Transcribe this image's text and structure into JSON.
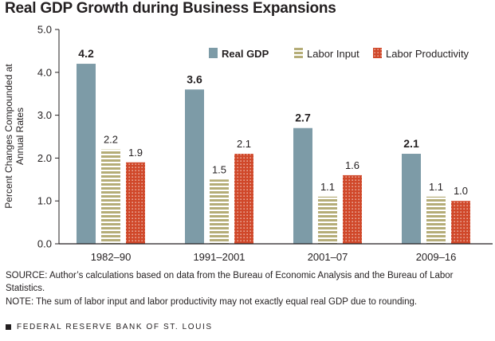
{
  "title": "Real GDP Growth during Business Expansions",
  "chart_data": {
    "type": "bar",
    "categories": [
      "1982–90",
      "1991–2001",
      "2001–07",
      "2009–16"
    ],
    "series": [
      {
        "name": "Real GDP",
        "values": [
          4.2,
          3.6,
          2.7,
          2.1
        ],
        "color": "#7d9ba7",
        "pattern": "solid",
        "labels": [
          "4.2",
          "3.6",
          "2.7",
          "2.1"
        ],
        "bold_labels": true
      },
      {
        "name": "Labor Input",
        "values": [
          2.2,
          1.5,
          1.1,
          1.1
        ],
        "color": "#b5ad78",
        "pattern": "horizontal-stripes",
        "labels": [
          "2.2",
          "1.5",
          "1.1",
          "1.1"
        ],
        "bold_labels": false
      },
      {
        "name": "Labor Productivity",
        "values": [
          1.9,
          2.1,
          1.6,
          1.0
        ],
        "color": "#d0482a",
        "pattern": "dots",
        "labels": [
          "1.9",
          "2.1",
          "1.6",
          "1.0"
        ],
        "bold_labels": false
      }
    ],
    "ylabel": "Percent Changes Compounded at Annual Rates",
    "ylim": [
      0,
      5
    ],
    "yticks": [
      "0.0",
      "1.0",
      "2.0",
      "3.0",
      "4.0",
      "5.0"
    ],
    "grid": false,
    "legend_position": "top-right"
  },
  "source": "SOURCE: Author’s calculations based on data from the Bureau of Economic Analysis and the Bureau of Labor Statistics.",
  "note": "NOTE: The sum of labor input and labor productivity may not exactly equal real GDP due to rounding.",
  "footer": "FEDERAL RESERVE BANK OF ST. LOUIS"
}
